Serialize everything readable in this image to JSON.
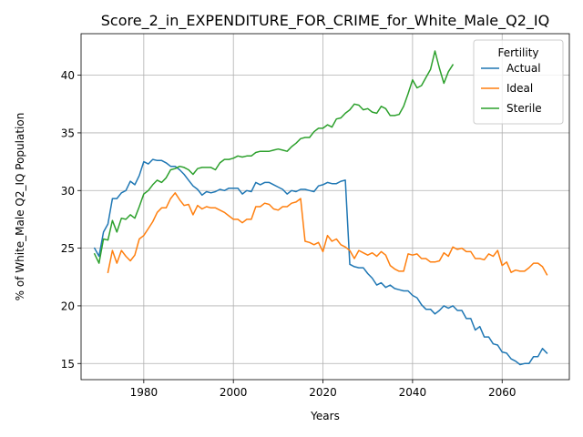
{
  "chart_data": {
    "type": "line",
    "title": "Score_2_in_EXPENDITURE_FOR_CRIME_for_White_Male_Q2_IQ",
    "xlabel": "Years",
    "ylabel": "% of White_Male Q2_IQ Population",
    "xlim": [
      1966,
      2075
    ],
    "ylim": [
      13.6,
      43.6
    ],
    "x_ticks": [
      1980,
      2000,
      2020,
      2040,
      2060
    ],
    "y_ticks": [
      15,
      20,
      25,
      30,
      35,
      40
    ],
    "grid": true,
    "legend": {
      "title": "Fertility",
      "placement": "top-right"
    },
    "series": [
      {
        "name": "Actual",
        "color": "#1f77b4",
        "x": [
          1969,
          1970,
          1971,
          1972,
          1973,
          1974,
          1975,
          1976,
          1977,
          1978,
          1979,
          1980,
          1981,
          1982,
          1983,
          1984,
          1985,
          1986,
          1987,
          1988,
          1989,
          1990,
          1991,
          1992,
          1993,
          1994,
          1995,
          1996,
          1997,
          1998,
          1999,
          2000,
          2001,
          2002,
          2003,
          2004,
          2005,
          2006,
          2007,
          2008,
          2009,
          2010,
          2011,
          2012,
          2013,
          2014,
          2015,
          2016,
          2017,
          2018,
          2019,
          2020,
          2021,
          2022,
          2023,
          2024,
          2025,
          2026,
          2027,
          2028,
          2029,
          2030,
          2031,
          2032,
          2033,
          2034,
          2035,
          2036,
          2037,
          2038,
          2039,
          2040,
          2041,
          2042,
          2043,
          2044,
          2045,
          2046,
          2047,
          2048,
          2049,
          2050,
          2051,
          2052,
          2053,
          2054,
          2055,
          2056,
          2057,
          2058,
          2059,
          2060,
          2061,
          2062,
          2063,
          2064,
          2065,
          2066,
          2067,
          2068,
          2069,
          2070
        ],
        "values": [
          25.0,
          24.3,
          26.4,
          27.1,
          29.3,
          29.3,
          29.8,
          30.0,
          30.8,
          30.5,
          31.3,
          32.5,
          32.3,
          32.7,
          32.6,
          32.6,
          32.4,
          32.1,
          32.1,
          31.8,
          31.4,
          30.9,
          30.4,
          30.1,
          29.6,
          29.9,
          29.8,
          29.9,
          30.1,
          30.0,
          30.2,
          30.2,
          30.2,
          29.7,
          30.0,
          29.9,
          30.7,
          30.5,
          30.7,
          30.7,
          30.5,
          30.3,
          30.1,
          29.7,
          30.0,
          29.9,
          30.1,
          30.1,
          30.0,
          29.9,
          30.4,
          30.5,
          30.7,
          30.6,
          30.6,
          30.8,
          30.9,
          23.6,
          23.4,
          23.3,
          23.3,
          22.8,
          22.4,
          21.8,
          22.0,
          21.6,
          21.8,
          21.5,
          21.4,
          21.3,
          21.3,
          20.9,
          20.7,
          20.1,
          19.7,
          19.7,
          19.3,
          19.6,
          20.0,
          19.8,
          20.0,
          19.6,
          19.6,
          18.9,
          18.9,
          17.9,
          18.2,
          17.3,
          17.3,
          16.7,
          16.6,
          16.0,
          15.9,
          15.4,
          15.2,
          14.9,
          15.0,
          15.0,
          15.6,
          15.6,
          16.3,
          15.9
        ]
      },
      {
        "name": "Ideal",
        "color": "#ff7f0e",
        "x": [
          1972,
          1973,
          1974,
          1975,
          1976,
          1977,
          1978,
          1979,
          1980,
          1981,
          1982,
          1983,
          1984,
          1985,
          1986,
          1987,
          1988,
          1989,
          1990,
          1991,
          1992,
          1993,
          1994,
          1995,
          1996,
          1997,
          1998,
          1999,
          2000,
          2001,
          2002,
          2003,
          2004,
          2005,
          2006,
          2007,
          2008,
          2009,
          2010,
          2011,
          2012,
          2013,
          2014,
          2015,
          2016,
          2017,
          2018,
          2019,
          2020,
          2021,
          2022,
          2023,
          2024,
          2025,
          2026,
          2027,
          2028,
          2029,
          2030,
          2031,
          2032,
          2033,
          2034,
          2035,
          2036,
          2037,
          2038,
          2039,
          2040,
          2041,
          2042,
          2043,
          2044,
          2045,
          2046,
          2047,
          2048,
          2049,
          2050,
          2051,
          2052,
          2053,
          2054,
          2055,
          2056,
          2057,
          2058,
          2059,
          2060,
          2061,
          2062,
          2063,
          2064,
          2065,
          2066,
          2067,
          2068,
          2069,
          2070
        ],
        "values": [
          22.9,
          24.8,
          23.7,
          24.8,
          24.3,
          23.9,
          24.4,
          25.8,
          26.1,
          26.7,
          27.3,
          28.1,
          28.5,
          28.5,
          29.3,
          29.8,
          29.2,
          28.7,
          28.8,
          27.9,
          28.7,
          28.4,
          28.6,
          28.5,
          28.5,
          28.3,
          28.1,
          27.8,
          27.5,
          27.5,
          27.2,
          27.5,
          27.5,
          28.6,
          28.6,
          28.9,
          28.8,
          28.4,
          28.3,
          28.6,
          28.6,
          28.9,
          29.0,
          29.3,
          25.6,
          25.5,
          25.3,
          25.5,
          24.7,
          26.1,
          25.6,
          25.8,
          25.3,
          25.1,
          24.8,
          24.1,
          24.8,
          24.6,
          24.4,
          24.6,
          24.3,
          24.7,
          24.4,
          23.5,
          23.2,
          23.0,
          23.0,
          24.5,
          24.4,
          24.5,
          24.1,
          24.1,
          23.8,
          23.8,
          23.9,
          24.6,
          24.3,
          25.1,
          24.9,
          25.0,
          24.7,
          24.7,
          24.1,
          24.1,
          24.0,
          24.5,
          24.3,
          24.8,
          23.5,
          23.8,
          22.9,
          23.1,
          23.0,
          23.0,
          23.3,
          23.7,
          23.7,
          23.4,
          22.7
        ]
      },
      {
        "name": "Sterile",
        "color": "#2ca02c",
        "x": [
          1969,
          1970,
          1971,
          1972,
          1973,
          1974,
          1975,
          1976,
          1977,
          1978,
          1979,
          1980,
          1981,
          1982,
          1983,
          1984,
          1985,
          1986,
          1987,
          1988,
          1989,
          1990,
          1991,
          1992,
          1993,
          1994,
          1995,
          1996,
          1997,
          1998,
          1999,
          2000,
          2001,
          2002,
          2003,
          2004,
          2005,
          2006,
          2007,
          2008,
          2009,
          2010,
          2011,
          2012,
          2013,
          2014,
          2015,
          2016,
          2017,
          2018,
          2019,
          2020,
          2021,
          2022,
          2023,
          2024,
          2025,
          2026,
          2027,
          2028,
          2029,
          2030,
          2031,
          2032,
          2033,
          2034,
          2035,
          2036,
          2037,
          2038,
          2039,
          2040,
          2041,
          2042,
          2043,
          2044,
          2045,
          2046,
          2047,
          2048,
          2049
        ],
        "values": [
          24.5,
          23.7,
          25.8,
          25.7,
          27.4,
          26.4,
          27.6,
          27.5,
          27.9,
          27.6,
          28.6,
          29.7,
          30.0,
          30.5,
          30.9,
          30.7,
          31.1,
          31.8,
          31.9,
          32.1,
          32.0,
          31.8,
          31.4,
          31.9,
          32.0,
          32.0,
          32.0,
          31.8,
          32.4,
          32.7,
          32.7,
          32.8,
          33.0,
          32.9,
          33.0,
          33.0,
          33.3,
          33.4,
          33.4,
          33.4,
          33.5,
          33.6,
          33.5,
          33.4,
          33.8,
          34.1,
          34.5,
          34.6,
          34.6,
          35.1,
          35.4,
          35.4,
          35.7,
          35.5,
          36.2,
          36.3,
          36.7,
          37.0,
          37.5,
          37.4,
          37.0,
          37.1,
          36.8,
          36.7,
          37.3,
          37.1,
          36.5,
          36.5,
          36.6,
          37.3,
          38.4,
          39.6,
          38.9,
          39.1,
          39.8,
          40.5,
          42.1,
          40.6,
          39.3,
          40.3,
          40.9
        ]
      }
    ]
  }
}
